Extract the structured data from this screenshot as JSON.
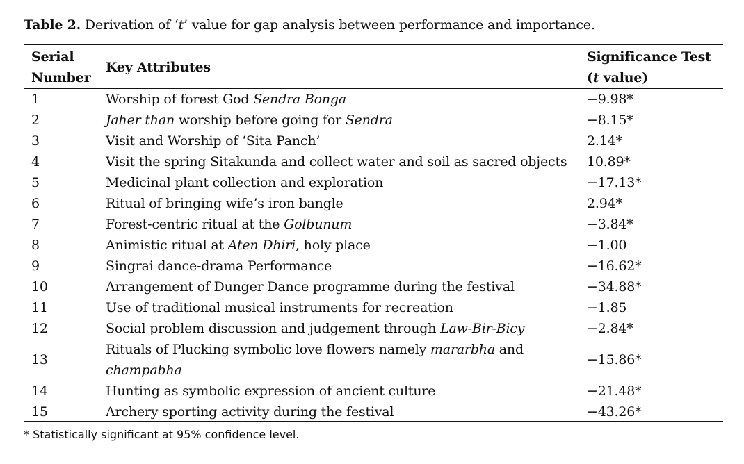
{
  "caption": {
    "label": "Table 2.",
    "text_before": " Derivation of ‘",
    "text_italic": "t",
    "text_after": "’ value for gap analysis between performance and importance."
  },
  "headers": {
    "serial_line1": "Serial",
    "serial_line2": "Number",
    "attributes": "Key Attributes",
    "sig_line1": "Significance Test",
    "sig_line2_italic": "t",
    "sig_line2_rest": " value)",
    "sig_line2_open": "("
  },
  "rows": [
    {
      "num": "1",
      "attr": [
        {
          "t": "Worship of forest God "
        },
        {
          "t": "Sendra Bonga",
          "i": true
        }
      ],
      "value": "−9.98*"
    },
    {
      "num": "2",
      "attr": [
        {
          "t": "Jaher than",
          "i": true
        },
        {
          "t": " worship before going for "
        },
        {
          "t": "Sendra",
          "i": true
        }
      ],
      "value": "−8.15*"
    },
    {
      "num": "3",
      "attr": [
        {
          "t": "Visit and Worship of ‘Sita Panch’"
        }
      ],
      "value": "2.14*"
    },
    {
      "num": "4",
      "attr": [
        {
          "t": "Visit the spring Sitakunda and collect water and soil as sacred objects"
        }
      ],
      "value": "10.89*"
    },
    {
      "num": "5",
      "attr": [
        {
          "t": "Medicinal plant collection and exploration"
        }
      ],
      "value": "−17.13*"
    },
    {
      "num": "6",
      "attr": [
        {
          "t": "Ritual of bringing wife’s iron bangle"
        }
      ],
      "value": "2.94*"
    },
    {
      "num": "7",
      "attr": [
        {
          "t": "Forest-centric ritual at the "
        },
        {
          "t": "Golbunum",
          "i": true
        }
      ],
      "value": "−3.84*"
    },
    {
      "num": "8",
      "attr": [
        {
          "t": "Animistic ritual at "
        },
        {
          "t": "Aten Dhiri",
          "i": true
        },
        {
          "t": ", holy place"
        }
      ],
      "value": "−1.00"
    },
    {
      "num": "9",
      "attr": [
        {
          "t": "Singrai dance-drama Performance"
        }
      ],
      "value": "−16.62*"
    },
    {
      "num": "10",
      "attr": [
        {
          "t": "Arrangement of Dunger Dance programme during the festival"
        }
      ],
      "value": "−34.88*"
    },
    {
      "num": "11",
      "attr": [
        {
          "t": "Use of traditional musical instruments for recreation"
        }
      ],
      "value": "−1.85"
    },
    {
      "num": "12",
      "attr": [
        {
          "t": "Social problem discussion and judgement through "
        },
        {
          "t": "Law-Bir-Bicy",
          "i": true
        }
      ],
      "value": "−2.84*"
    },
    {
      "num": "13",
      "attr": [
        {
          "t": "Rituals of Plucking symbolic love flowers namely "
        },
        {
          "t": "mararbha",
          "i": true
        },
        {
          "t": " and"
        }
      ],
      "attr2": [
        {
          "t": "champabha",
          "i": true
        }
      ],
      "value": "−15.86*"
    },
    {
      "num": "14",
      "attr": [
        {
          "t": "Hunting as symbolic expression of ancient culture"
        }
      ],
      "value": "−21.48*"
    },
    {
      "num": "15",
      "attr": [
        {
          "t": "Archery sporting activity during the festival"
        }
      ],
      "value": "−43.26*"
    }
  ],
  "footnote": "* Statistically significant at 95% confidence level."
}
